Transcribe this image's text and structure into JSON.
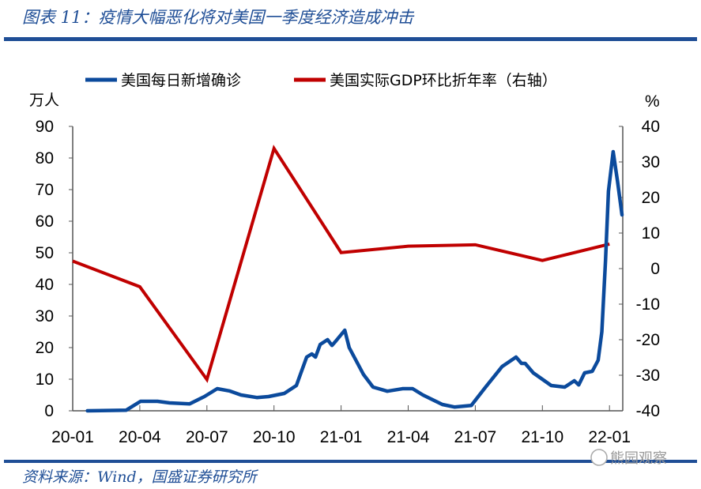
{
  "title": "图表 11：疫情大幅恶化将对美国一季度经济造成冲击",
  "source": "资料来源：Wind，国盛证券研究所",
  "watermark": "熊园观察",
  "chart_data": {
    "type": "line",
    "title": "图表 11：疫情大幅恶化将对美国一季度经济造成冲击",
    "y_left_unit": "万人",
    "y_right_unit": "%",
    "ylim_left": [
      0,
      90
    ],
    "ylim_right": [
      -40,
      40
    ],
    "yticks_left": [
      "0",
      "10",
      "20",
      "30",
      "40",
      "50",
      "60",
      "70",
      "80",
      "90"
    ],
    "yticks_right": [
      "-40",
      "-30",
      "-20",
      "-10",
      "0",
      "10",
      "20",
      "30",
      "40"
    ],
    "xticks": [
      "20-01",
      "20-04",
      "20-07",
      "20-10",
      "21-01",
      "21-04",
      "21-07",
      "21-10",
      "22-01"
    ],
    "grid": false,
    "legend_position": "top",
    "colors": {
      "cases": "#0b4a9c",
      "gdp": "#c00000",
      "rule": "#1f4e96"
    },
    "series": [
      {
        "name": "美国每日新增确诊",
        "axis": "left",
        "points": [
          [
            "2020-01-21",
            0
          ],
          [
            "2020-03-13",
            0.2
          ],
          [
            "2020-04-02",
            3
          ],
          [
            "2020-04-25",
            3
          ],
          [
            "2020-05-11",
            2.5
          ],
          [
            "2020-06-08",
            2.2
          ],
          [
            "2020-06-28",
            4.5
          ],
          [
            "2020-07-15",
            7
          ],
          [
            "2020-08-01",
            6.3
          ],
          [
            "2020-08-17",
            5
          ],
          [
            "2020-09-08",
            4.2
          ],
          [
            "2020-09-24",
            4.5
          ],
          [
            "2020-10-15",
            5.5
          ],
          [
            "2020-11-01",
            8
          ],
          [
            "2020-11-15",
            17
          ],
          [
            "2020-11-22",
            18
          ],
          [
            "2020-11-27",
            17
          ],
          [
            "2020-12-03",
            21
          ],
          [
            "2020-12-13",
            22.5
          ],
          [
            "2020-12-19",
            20.7
          ],
          [
            "2020-12-24",
            22
          ],
          [
            "2021-01-06",
            25.5
          ],
          [
            "2021-01-12",
            20
          ],
          [
            "2021-02-01",
            11.5
          ],
          [
            "2021-02-14",
            7.5
          ],
          [
            "2021-03-03",
            6.2
          ],
          [
            "2021-03-24",
            7
          ],
          [
            "2021-04-07",
            7
          ],
          [
            "2021-04-21",
            5
          ],
          [
            "2021-05-17",
            2
          ],
          [
            "2021-06-03",
            1.2
          ],
          [
            "2021-06-26",
            1.7
          ],
          [
            "2021-07-15",
            7.5
          ],
          [
            "2021-08-07",
            14
          ],
          [
            "2021-08-26",
            17
          ],
          [
            "2021-09-03",
            15
          ],
          [
            "2021-09-08",
            15
          ],
          [
            "2021-09-19",
            12
          ],
          [
            "2021-10-13",
            8
          ],
          [
            "2021-11-01",
            7.5
          ],
          [
            "2021-11-14",
            9.5
          ],
          [
            "2021-11-20",
            8.2
          ],
          [
            "2021-11-28",
            12
          ],
          [
            "2021-12-08",
            12.5
          ],
          [
            "2021-12-16",
            16
          ],
          [
            "2021-12-21",
            25
          ],
          [
            "2021-12-26",
            47.5
          ],
          [
            "2021-12-30",
            69.5
          ],
          [
            "2022-01-06",
            82
          ],
          [
            "2022-01-12",
            72.5
          ],
          [
            "2022-01-18",
            62
          ]
        ]
      },
      {
        "name": "美国实际GDP环比折年率（右轴）",
        "axis": "right",
        "points": [
          [
            "2020-01-01",
            2.1
          ],
          [
            "2020-04-01",
            -5.1
          ],
          [
            "2020-07-01",
            -31.2
          ],
          [
            "2020-10-01",
            33.8
          ],
          [
            "2021-01-01",
            4.5
          ],
          [
            "2021-04-01",
            6.3
          ],
          [
            "2021-07-01",
            6.7
          ],
          [
            "2021-10-01",
            2.3
          ],
          [
            "2022-01-01",
            6.9
          ]
        ]
      }
    ]
  }
}
